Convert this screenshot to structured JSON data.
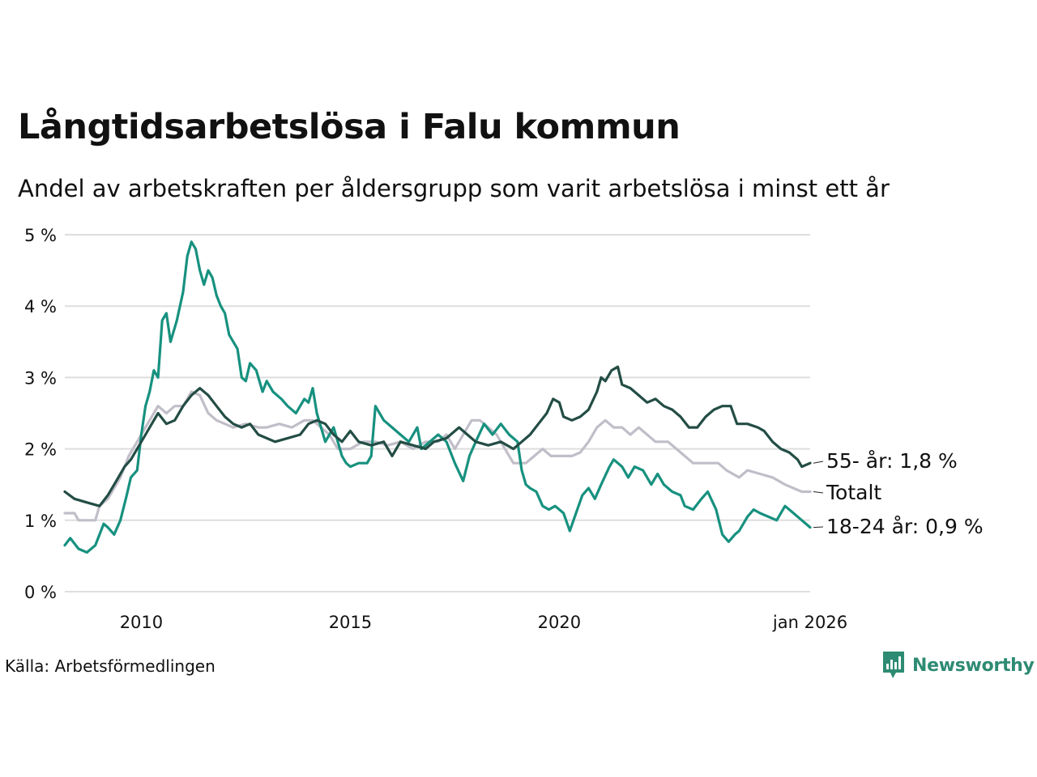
{
  "header": {
    "title": "Långtidsarbetslösa i Falu kommun",
    "subtitle": "Andel av arbetskraften per åldersgrupp som varit arbetslösa i minst ett år"
  },
  "footer": {
    "source": "Källa: Arbetsförmedlingen",
    "brand": "Newsworthy"
  },
  "colors": {
    "youth": "#17917f",
    "senior": "#234d45",
    "total": "#c1bec9",
    "grid": "#dedede",
    "brand": "#2e8b73"
  },
  "chart_data": {
    "type": "line",
    "title": "Långtidsarbetslösa i Falu kommun",
    "subtitle": "Andel av arbetskraften per åldersgrupp som varit arbetslösa i minst ett år",
    "xlabel": "",
    "ylabel": "",
    "x_range": [
      2008.17,
      2026.0
    ],
    "ylim": [
      0,
      5
    ],
    "y_ticks": [
      0,
      1,
      2,
      3,
      4,
      5
    ],
    "y_tick_labels": [
      "0 %",
      "1 %",
      "2 %",
      "3 %",
      "4 %",
      "5 %"
    ],
    "x_ticks": [
      2010,
      2015,
      2020,
      2026.0
    ],
    "x_tick_labels": [
      "2010",
      "2015",
      "2020",
      "jan 2026"
    ],
    "grid": true,
    "series": [
      {
        "name": "Totalt",
        "label": "Totalt",
        "color_key": "total",
        "points": [
          [
            2008.17,
            1.1
          ],
          [
            2008.4,
            1.1
          ],
          [
            2008.5,
            1.0
          ],
          [
            2008.9,
            1.0
          ],
          [
            2009.0,
            1.2
          ],
          [
            2009.2,
            1.3
          ],
          [
            2009.5,
            1.6
          ],
          [
            2009.7,
            1.9
          ],
          [
            2009.9,
            2.1
          ],
          [
            2010.1,
            2.3
          ],
          [
            2010.3,
            2.5
          ],
          [
            2010.4,
            2.6
          ],
          [
            2010.6,
            2.5
          ],
          [
            2010.8,
            2.6
          ],
          [
            2011.0,
            2.6
          ],
          [
            2011.2,
            2.8
          ],
          [
            2011.4,
            2.75
          ],
          [
            2011.6,
            2.5
          ],
          [
            2011.8,
            2.4
          ],
          [
            2012.0,
            2.35
          ],
          [
            2012.2,
            2.3
          ],
          [
            2012.5,
            2.35
          ],
          [
            2012.8,
            2.3
          ],
          [
            2013.0,
            2.3
          ],
          [
            2013.3,
            2.35
          ],
          [
            2013.6,
            2.3
          ],
          [
            2013.9,
            2.4
          ],
          [
            2014.1,
            2.4
          ],
          [
            2014.3,
            2.3
          ],
          [
            2014.5,
            2.2
          ],
          [
            2014.7,
            2.0
          ],
          [
            2015.0,
            2.0
          ],
          [
            2015.3,
            2.1
          ],
          [
            2015.6,
            2.1
          ],
          [
            2015.9,
            2.05
          ],
          [
            2016.2,
            2.1
          ],
          [
            2016.5,
            2.0
          ],
          [
            2016.8,
            2.1
          ],
          [
            2017.1,
            2.1
          ],
          [
            2017.3,
            2.2
          ],
          [
            2017.5,
            2.0
          ],
          [
            2017.7,
            2.2
          ],
          [
            2017.9,
            2.4
          ],
          [
            2018.1,
            2.4
          ],
          [
            2018.3,
            2.3
          ],
          [
            2018.5,
            2.2
          ],
          [
            2018.7,
            2.0
          ],
          [
            2018.9,
            1.8
          ],
          [
            2019.2,
            1.8
          ],
          [
            2019.4,
            1.9
          ],
          [
            2019.6,
            2.0
          ],
          [
            2019.8,
            1.9
          ],
          [
            2020.0,
            1.9
          ],
          [
            2020.3,
            1.9
          ],
          [
            2020.5,
            1.95
          ],
          [
            2020.7,
            2.1
          ],
          [
            2020.9,
            2.3
          ],
          [
            2021.1,
            2.4
          ],
          [
            2021.3,
            2.3
          ],
          [
            2021.5,
            2.3
          ],
          [
            2021.7,
            2.2
          ],
          [
            2021.9,
            2.3
          ],
          [
            2022.1,
            2.2
          ],
          [
            2022.3,
            2.1
          ],
          [
            2022.6,
            2.1
          ],
          [
            2022.8,
            2.0
          ],
          [
            2023.0,
            1.9
          ],
          [
            2023.2,
            1.8
          ],
          [
            2023.5,
            1.8
          ],
          [
            2023.8,
            1.8
          ],
          [
            2024.0,
            1.7
          ],
          [
            2024.3,
            1.6
          ],
          [
            2024.5,
            1.7
          ],
          [
            2024.8,
            1.65
          ],
          [
            2025.1,
            1.6
          ],
          [
            2025.4,
            1.5
          ],
          [
            2025.6,
            1.45
          ],
          [
            2025.8,
            1.4
          ],
          [
            2026.0,
            1.4
          ]
        ]
      },
      {
        "name": "18-24 år",
        "label": "18-24 år: 0,9 %",
        "color_key": "youth",
        "points": [
          [
            2008.17,
            0.65
          ],
          [
            2008.3,
            0.75
          ],
          [
            2008.5,
            0.6
          ],
          [
            2008.7,
            0.55
          ],
          [
            2008.9,
            0.65
          ],
          [
            2009.1,
            0.95
          ],
          [
            2009.2,
            0.9
          ],
          [
            2009.35,
            0.8
          ],
          [
            2009.5,
            1.0
          ],
          [
            2009.65,
            1.35
          ],
          [
            2009.75,
            1.6
          ],
          [
            2009.9,
            1.7
          ],
          [
            2010.0,
            2.2
          ],
          [
            2010.1,
            2.6
          ],
          [
            2010.2,
            2.8
          ],
          [
            2010.3,
            3.1
          ],
          [
            2010.4,
            3.0
          ],
          [
            2010.5,
            3.8
          ],
          [
            2010.6,
            3.9
          ],
          [
            2010.7,
            3.5
          ],
          [
            2010.85,
            3.8
          ],
          [
            2011.0,
            4.2
          ],
          [
            2011.1,
            4.7
          ],
          [
            2011.2,
            4.9
          ],
          [
            2011.3,
            4.8
          ],
          [
            2011.4,
            4.5
          ],
          [
            2011.5,
            4.3
          ],
          [
            2011.6,
            4.5
          ],
          [
            2011.7,
            4.4
          ],
          [
            2011.8,
            4.15
          ],
          [
            2011.9,
            4.0
          ],
          [
            2012.0,
            3.9
          ],
          [
            2012.1,
            3.6
          ],
          [
            2012.3,
            3.4
          ],
          [
            2012.4,
            3.0
          ],
          [
            2012.5,
            2.95
          ],
          [
            2012.6,
            3.2
          ],
          [
            2012.75,
            3.1
          ],
          [
            2012.9,
            2.8
          ],
          [
            2013.0,
            2.95
          ],
          [
            2013.15,
            2.8
          ],
          [
            2013.35,
            2.7
          ],
          [
            2013.5,
            2.6
          ],
          [
            2013.7,
            2.5
          ],
          [
            2013.9,
            2.7
          ],
          [
            2014.0,
            2.65
          ],
          [
            2014.1,
            2.85
          ],
          [
            2014.2,
            2.5
          ],
          [
            2014.4,
            2.1
          ],
          [
            2014.6,
            2.3
          ],
          [
            2014.8,
            1.9
          ],
          [
            2014.9,
            1.8
          ],
          [
            2015.0,
            1.75
          ],
          [
            2015.2,
            1.8
          ],
          [
            2015.4,
            1.8
          ],
          [
            2015.5,
            1.9
          ],
          [
            2015.6,
            2.6
          ],
          [
            2015.8,
            2.4
          ],
          [
            2016.0,
            2.3
          ],
          [
            2016.2,
            2.2
          ],
          [
            2016.4,
            2.1
          ],
          [
            2016.6,
            2.3
          ],
          [
            2016.7,
            2.0
          ],
          [
            2016.9,
            2.1
          ],
          [
            2017.1,
            2.2
          ],
          [
            2017.3,
            2.1
          ],
          [
            2017.5,
            1.8
          ],
          [
            2017.7,
            1.55
          ],
          [
            2017.85,
            1.9
          ],
          [
            2018.0,
            2.1
          ],
          [
            2018.2,
            2.35
          ],
          [
            2018.4,
            2.2
          ],
          [
            2018.6,
            2.35
          ],
          [
            2018.8,
            2.2
          ],
          [
            2019.0,
            2.1
          ],
          [
            2019.1,
            1.7
          ],
          [
            2019.2,
            1.5
          ],
          [
            2019.3,
            1.45
          ],
          [
            2019.45,
            1.4
          ],
          [
            2019.6,
            1.2
          ],
          [
            2019.75,
            1.15
          ],
          [
            2019.9,
            1.2
          ],
          [
            2020.1,
            1.1
          ],
          [
            2020.25,
            0.85
          ],
          [
            2020.4,
            1.1
          ],
          [
            2020.55,
            1.35
          ],
          [
            2020.7,
            1.45
          ],
          [
            2020.85,
            1.3
          ],
          [
            2021.0,
            1.5
          ],
          [
            2021.2,
            1.75
          ],
          [
            2021.3,
            1.85
          ],
          [
            2021.5,
            1.75
          ],
          [
            2021.65,
            1.6
          ],
          [
            2021.8,
            1.75
          ],
          [
            2022.0,
            1.7
          ],
          [
            2022.2,
            1.5
          ],
          [
            2022.35,
            1.65
          ],
          [
            2022.5,
            1.5
          ],
          [
            2022.7,
            1.4
          ],
          [
            2022.9,
            1.35
          ],
          [
            2023.0,
            1.2
          ],
          [
            2023.2,
            1.15
          ],
          [
            2023.4,
            1.3
          ],
          [
            2023.55,
            1.4
          ],
          [
            2023.75,
            1.15
          ],
          [
            2023.9,
            0.8
          ],
          [
            2024.05,
            0.7
          ],
          [
            2024.2,
            0.8
          ],
          [
            2024.3,
            0.85
          ],
          [
            2024.5,
            1.05
          ],
          [
            2024.65,
            1.15
          ],
          [
            2024.8,
            1.1
          ],
          [
            2025.0,
            1.05
          ],
          [
            2025.2,
            1.0
          ],
          [
            2025.4,
            1.2
          ],
          [
            2025.6,
            1.1
          ],
          [
            2025.8,
            1.0
          ],
          [
            2026.0,
            0.9
          ]
        ]
      },
      {
        "name": "55- år",
        "label": "55- år: 1,8 %",
        "color_key": "senior",
        "points": [
          [
            2008.17,
            1.4
          ],
          [
            2008.4,
            1.3
          ],
          [
            2008.7,
            1.25
          ],
          [
            2009.0,
            1.2
          ],
          [
            2009.2,
            1.35
          ],
          [
            2009.4,
            1.55
          ],
          [
            2009.6,
            1.75
          ],
          [
            2009.75,
            1.85
          ],
          [
            2009.9,
            2.0
          ],
          [
            2010.1,
            2.2
          ],
          [
            2010.3,
            2.4
          ],
          [
            2010.4,
            2.5
          ],
          [
            2010.6,
            2.35
          ],
          [
            2010.8,
            2.4
          ],
          [
            2011.0,
            2.6
          ],
          [
            2011.2,
            2.75
          ],
          [
            2011.4,
            2.85
          ],
          [
            2011.6,
            2.75
          ],
          [
            2011.8,
            2.6
          ],
          [
            2012.0,
            2.45
          ],
          [
            2012.2,
            2.35
          ],
          [
            2012.4,
            2.3
          ],
          [
            2012.6,
            2.35
          ],
          [
            2012.8,
            2.2
          ],
          [
            2013.0,
            2.15
          ],
          [
            2013.2,
            2.1
          ],
          [
            2013.5,
            2.15
          ],
          [
            2013.8,
            2.2
          ],
          [
            2014.0,
            2.35
          ],
          [
            2014.2,
            2.4
          ],
          [
            2014.4,
            2.35
          ],
          [
            2014.6,
            2.2
          ],
          [
            2014.8,
            2.1
          ],
          [
            2015.0,
            2.25
          ],
          [
            2015.2,
            2.1
          ],
          [
            2015.5,
            2.05
          ],
          [
            2015.8,
            2.1
          ],
          [
            2016.0,
            1.9
          ],
          [
            2016.2,
            2.1
          ],
          [
            2016.5,
            2.05
          ],
          [
            2016.8,
            2.0
          ],
          [
            2017.0,
            2.1
          ],
          [
            2017.3,
            2.15
          ],
          [
            2017.6,
            2.3
          ],
          [
            2017.8,
            2.2
          ],
          [
            2018.0,
            2.1
          ],
          [
            2018.3,
            2.05
          ],
          [
            2018.6,
            2.1
          ],
          [
            2018.9,
            2.0
          ],
          [
            2019.1,
            2.1
          ],
          [
            2019.3,
            2.2
          ],
          [
            2019.5,
            2.35
          ],
          [
            2019.7,
            2.5
          ],
          [
            2019.85,
            2.7
          ],
          [
            2020.0,
            2.65
          ],
          [
            2020.1,
            2.45
          ],
          [
            2020.3,
            2.4
          ],
          [
            2020.5,
            2.45
          ],
          [
            2020.7,
            2.55
          ],
          [
            2020.9,
            2.8
          ],
          [
            2021.0,
            3.0
          ],
          [
            2021.1,
            2.95
          ],
          [
            2021.25,
            3.1
          ],
          [
            2021.4,
            3.15
          ],
          [
            2021.5,
            2.9
          ],
          [
            2021.7,
            2.85
          ],
          [
            2021.9,
            2.75
          ],
          [
            2022.1,
            2.65
          ],
          [
            2022.3,
            2.7
          ],
          [
            2022.5,
            2.6
          ],
          [
            2022.7,
            2.55
          ],
          [
            2022.9,
            2.45
          ],
          [
            2023.1,
            2.3
          ],
          [
            2023.3,
            2.3
          ],
          [
            2023.5,
            2.45
          ],
          [
            2023.7,
            2.55
          ],
          [
            2023.9,
            2.6
          ],
          [
            2024.1,
            2.6
          ],
          [
            2024.25,
            2.35
          ],
          [
            2024.5,
            2.35
          ],
          [
            2024.75,
            2.3
          ],
          [
            2024.9,
            2.25
          ],
          [
            2025.1,
            2.1
          ],
          [
            2025.3,
            2.0
          ],
          [
            2025.5,
            1.95
          ],
          [
            2025.7,
            1.85
          ],
          [
            2025.8,
            1.75
          ],
          [
            2026.0,
            1.8
          ]
        ]
      }
    ]
  }
}
